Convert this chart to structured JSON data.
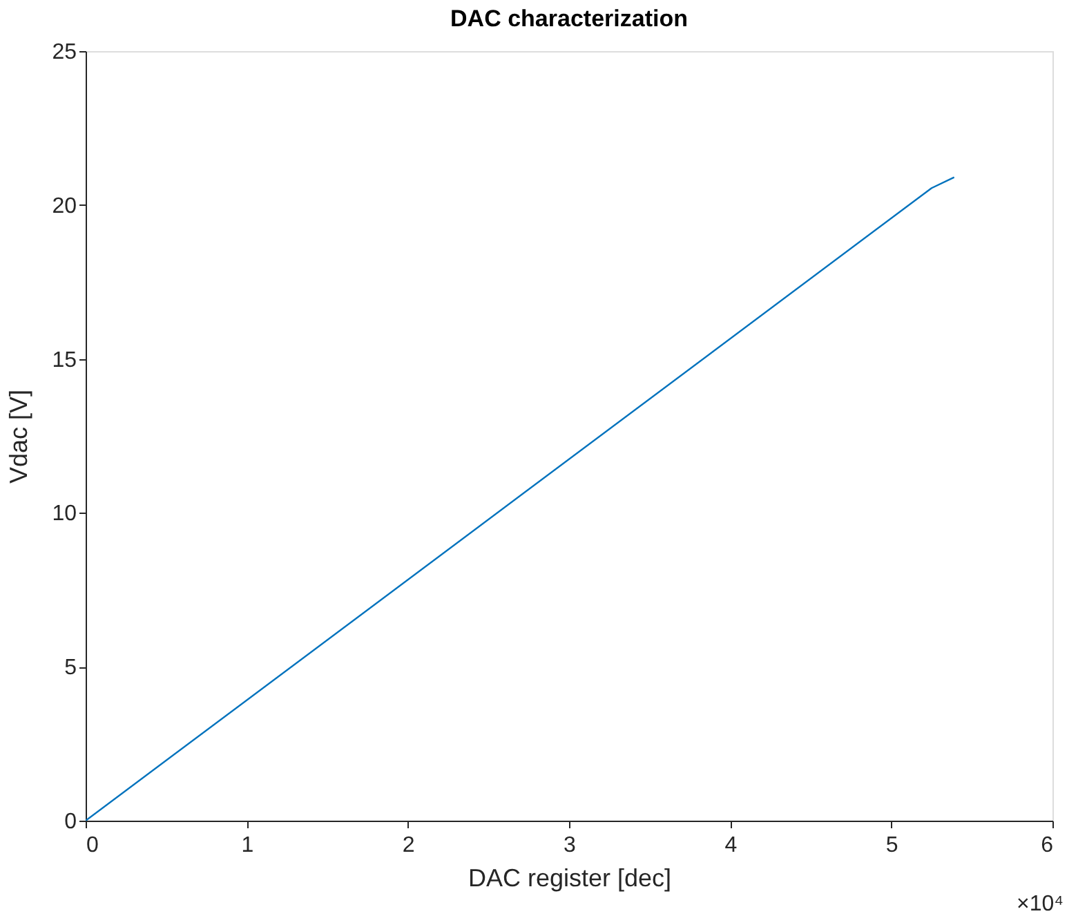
{
  "chart_data": {
    "type": "line",
    "title": "DAC characterization",
    "xlabel": "DAC register [dec]",
    "ylabel": "Vdac [V]",
    "x": [
      0,
      5.25,
      5.39
    ],
    "series": [
      {
        "color": "#0072bd",
        "values": [
          0,
          20.55,
          20.9
        ]
      }
    ],
    "xlim": [
      0,
      6
    ],
    "xticks": [
      0,
      1,
      2,
      3,
      4,
      5,
      6
    ],
    "ylim": [
      0,
      25
    ],
    "yticks": [
      0,
      5,
      10,
      15,
      20,
      25
    ],
    "annotations": [
      "×10⁴"
    ],
    "grid": false,
    "marker": "none",
    "line_style": "solid"
  }
}
